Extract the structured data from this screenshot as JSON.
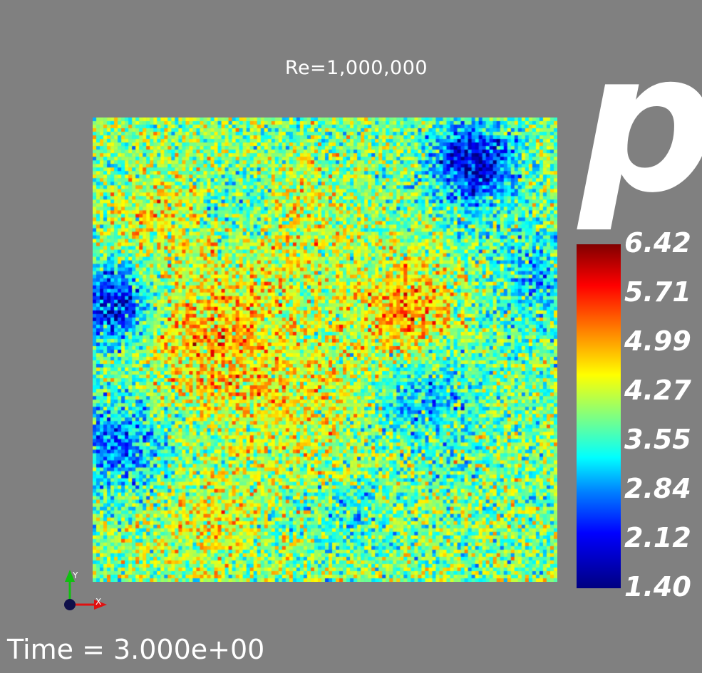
{
  "title": "Re=1,000,000",
  "variable": "p",
  "colorbar": {
    "min": 1.4,
    "max": 6.42,
    "labels": [
      "6.42",
      "5.71",
      "4.99",
      "4.27",
      "3.55",
      "2.84",
      "2.12",
      "1.40"
    ]
  },
  "time_label": "Time = 3.000e+00",
  "axes": {
    "x_label": "X",
    "y_label": "Y",
    "x_color": "#e01010",
    "y_color": "#10c010",
    "origin_color": "#10104a"
  },
  "colormap": "jet",
  "background_color": "#808080"
}
